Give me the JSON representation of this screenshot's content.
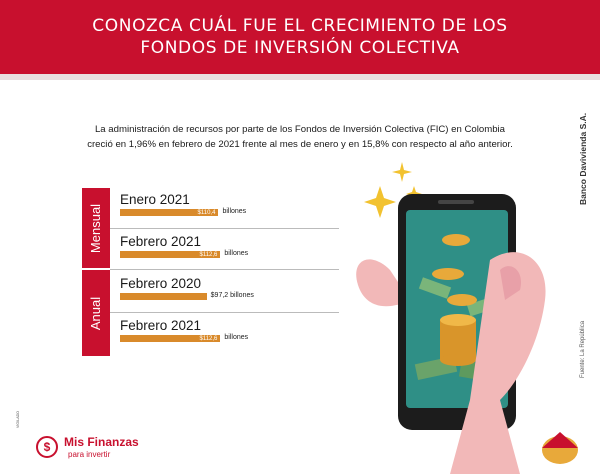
{
  "header": {
    "title_line1": "CONOZCA CUÁL FUE EL CRECIMIENTO DE LOS",
    "title_line2": "FONDOS DE INVERSIÓN COLECTIVA"
  },
  "intro": {
    "line1": "La administración de recursos por parte de los Fondos de Inversión Colectiva (FIC) en Colombia",
    "line2": "creció en 1,96% en febrero de 2021 frente al mes de enero y en 15,8% con respecto al año anterior."
  },
  "side_labels": {
    "mensual": "Mensual",
    "anual": "Anual"
  },
  "rows": [
    {
      "label": "Enero 2021",
      "value_text": "$110,4",
      "unit": "billones"
    },
    {
      "label": "Febrero 2021",
      "value_text": "$112,6",
      "unit": "billones"
    },
    {
      "label": "Febrero 2020",
      "value_text": "$97,2 billones",
      "unit": ""
    },
    {
      "label": "Febrero 2021",
      "value_text": "$112,6",
      "unit": "billones"
    }
  ],
  "brand": "Banco Davivienda S.A.",
  "source": "Fuente: La República",
  "vigilado": "VIGILADO",
  "logo": {
    "name": "Mis Finanzas",
    "tagline": "para invertir",
    "symbol": "$"
  },
  "colors": {
    "header": "#c8102e",
    "bar": "#d98a2b",
    "phone": "#1c1c1c",
    "screen": "#2f8f86",
    "hand": "#f2b8b8",
    "coin": "#e8a93a"
  },
  "chart_data": {
    "type": "bar",
    "orientation": "horizontal",
    "groups": [
      "Mensual",
      "Anual"
    ],
    "categories": [
      "Enero 2021",
      "Febrero 2021",
      "Febrero 2020",
      "Febrero 2021"
    ],
    "values": [
      110.4,
      112.6,
      97.2,
      112.6
    ],
    "xlim": [
      0,
      120
    ]
  }
}
